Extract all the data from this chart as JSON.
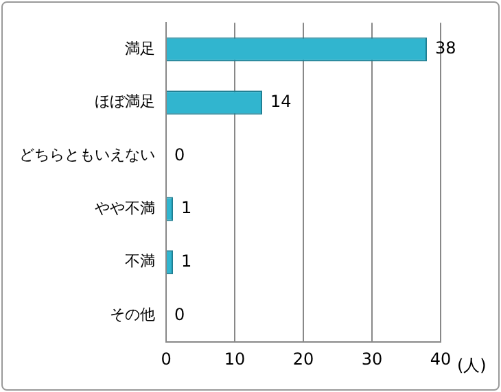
{
  "chart_data": {
    "type": "bar",
    "orientation": "horizontal",
    "categories": [
      "満足",
      "ほぼ満足",
      "どちらともいえない",
      "やや不満",
      "不満",
      "その他"
    ],
    "values": [
      38,
      14,
      0,
      1,
      1,
      0
    ],
    "color": "#31b5cf",
    "xlim": [
      0,
      40
    ],
    "xticks": [
      0,
      10,
      20,
      30,
      40
    ],
    "xlabel": "(人)",
    "grid": "x",
    "data_labels": true,
    "legend": false
  }
}
